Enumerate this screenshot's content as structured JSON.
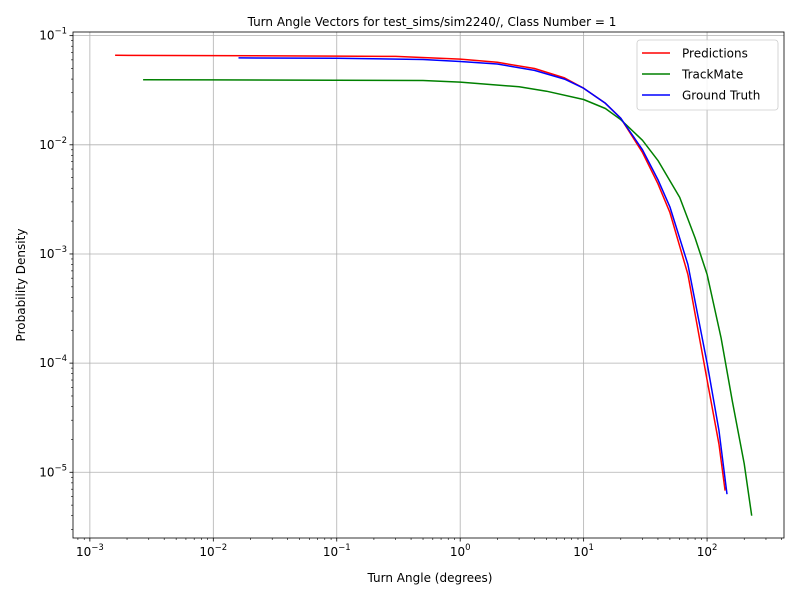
{
  "chart_data": {
    "type": "line",
    "title": "Turn Angle Vectors for test_sims/sim2240/, Class Number = 1",
    "xlabel": "Turn Angle (degrees)",
    "ylabel": "Probability Density",
    "xscale": "log",
    "yscale": "log",
    "xlim": [
      0.00073,
      420
    ],
    "ylim": [
      2.5e-06,
      0.108
    ],
    "grid": true,
    "legend_position": "top-right",
    "x_ticks": [
      {
        "value": 0.001,
        "label": "10",
        "exp": "−3"
      },
      {
        "value": 0.01,
        "label": "10",
        "exp": "−2"
      },
      {
        "value": 0.1,
        "label": "10",
        "exp": "−1"
      },
      {
        "value": 1,
        "label": "10",
        "exp": "0"
      },
      {
        "value": 10,
        "label": "10",
        "exp": "1"
      },
      {
        "value": 100,
        "label": "10",
        "exp": "2"
      }
    ],
    "y_ticks": [
      {
        "value": 1e-05,
        "label": "10",
        "exp": "−5"
      },
      {
        "value": 0.0001,
        "label": "10",
        "exp": "−4"
      },
      {
        "value": 0.001,
        "label": "10",
        "exp": "−3"
      },
      {
        "value": 0.01,
        "label": "10",
        "exp": "−2"
      },
      {
        "value": 0.1,
        "label": "10",
        "exp": "−1"
      }
    ],
    "series": [
      {
        "name": "Predictions",
        "color": "#ff0000",
        "points": [
          [
            0.0016,
            0.066
          ],
          [
            0.01,
            0.0657
          ],
          [
            0.1,
            0.065
          ],
          [
            0.3,
            0.0645
          ],
          [
            1,
            0.061
          ],
          [
            2,
            0.057
          ],
          [
            4,
            0.05
          ],
          [
            7,
            0.041
          ],
          [
            10,
            0.033
          ],
          [
            15,
            0.024
          ],
          [
            20,
            0.0175
          ],
          [
            30,
            0.0085
          ],
          [
            40,
            0.0044
          ],
          [
            50,
            0.0024
          ],
          [
            70,
            0.00065
          ],
          [
            100,
            7e-05
          ],
          [
            125,
            1.8e-05
          ],
          [
            140,
            6.8e-06
          ]
        ]
      },
      {
        "name": "TrackMate",
        "color": "#008000",
        "points": [
          [
            0.0027,
            0.0395
          ],
          [
            0.01,
            0.0393
          ],
          [
            0.1,
            0.039
          ],
          [
            0.5,
            0.0388
          ],
          [
            1,
            0.0375
          ],
          [
            3,
            0.034
          ],
          [
            5,
            0.031
          ],
          [
            10,
            0.026
          ],
          [
            15,
            0.0215
          ],
          [
            20,
            0.017
          ],
          [
            30,
            0.011
          ],
          [
            40,
            0.0072
          ],
          [
            60,
            0.0033
          ],
          [
            80,
            0.0014
          ],
          [
            100,
            0.00065
          ],
          [
            130,
            0.00017
          ],
          [
            160,
            4.5e-05
          ],
          [
            200,
            1.2e-05
          ],
          [
            230,
            4e-06
          ]
        ]
      },
      {
        "name": "Ground Truth",
        "color": "#0000ff",
        "points": [
          [
            0.016,
            0.0625
          ],
          [
            0.1,
            0.062
          ],
          [
            0.5,
            0.0605
          ],
          [
            1,
            0.058
          ],
          [
            2,
            0.055
          ],
          [
            4,
            0.048
          ],
          [
            7,
            0.04
          ],
          [
            10,
            0.033
          ],
          [
            15,
            0.024
          ],
          [
            20,
            0.0175
          ],
          [
            30,
            0.009
          ],
          [
            40,
            0.0048
          ],
          [
            50,
            0.0027
          ],
          [
            70,
            0.0008
          ],
          [
            100,
            0.0001
          ],
          [
            125,
            2.4e-05
          ],
          [
            145,
            6.3e-06
          ]
        ]
      }
    ]
  }
}
